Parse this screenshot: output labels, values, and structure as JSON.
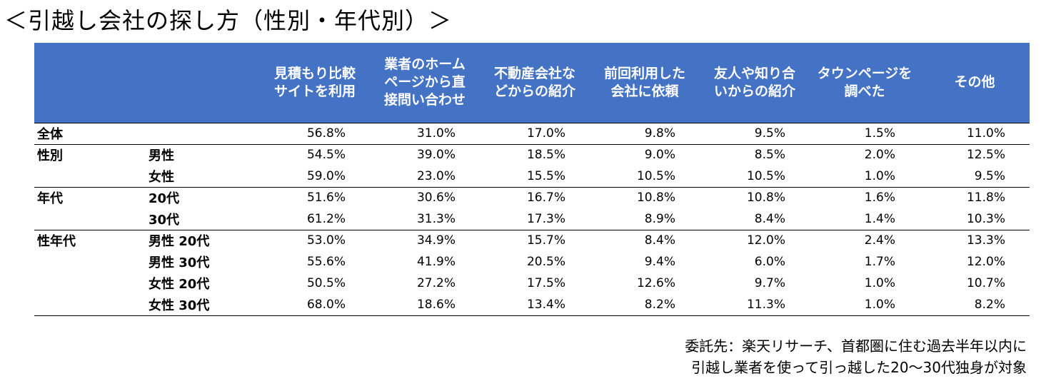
{
  "title": "＜引越し会社の探し方（性別・年代別）＞",
  "chart_data": {
    "type": "table",
    "columns": [
      "見積もり比較\nサイトを利用",
      "業者のホーム\nページから直\n接問い合わせ",
      "不動産会社な\nどからの紹介",
      "前回利用した\n会社に依頼",
      "友人や知り合\nいからの紹介",
      "タウンページを\n調べた",
      "その他"
    ],
    "rows": [
      {
        "group": "全体",
        "sub": "",
        "values": [
          "56.8%",
          "31.0%",
          "17.0%",
          "9.8%",
          "9.5%",
          "1.5%",
          "11.0%"
        ]
      },
      {
        "group": "性別",
        "sub": "男性",
        "values": [
          "54.5%",
          "39.0%",
          "18.5%",
          "9.0%",
          "8.5%",
          "2.0%",
          "12.5%"
        ]
      },
      {
        "group": "",
        "sub": "女性",
        "values": [
          "59.0%",
          "23.0%",
          "15.5%",
          "10.5%",
          "10.5%",
          "1.0%",
          "9.5%"
        ]
      },
      {
        "group": "年代",
        "sub": "20代",
        "values": [
          "51.6%",
          "30.6%",
          "16.7%",
          "10.8%",
          "10.8%",
          "1.6%",
          "11.8%"
        ]
      },
      {
        "group": "",
        "sub": "30代",
        "values": [
          "61.2%",
          "31.3%",
          "17.3%",
          "8.9%",
          "8.4%",
          "1.4%",
          "10.3%"
        ]
      },
      {
        "group": "性年代",
        "sub": "男性 20代",
        "values": [
          "53.0%",
          "34.9%",
          "15.7%",
          "8.4%",
          "12.0%",
          "2.4%",
          "13.3%"
        ]
      },
      {
        "group": "",
        "sub": "男性 30代",
        "values": [
          "55.6%",
          "41.9%",
          "20.5%",
          "9.4%",
          "6.0%",
          "1.7%",
          "12.0%"
        ]
      },
      {
        "group": "",
        "sub": "女性 20代",
        "values": [
          "50.5%",
          "27.2%",
          "17.5%",
          "12.6%",
          "9.7%",
          "1.0%",
          "10.7%"
        ]
      },
      {
        "group": "",
        "sub": "女性 30代",
        "values": [
          "68.0%",
          "18.6%",
          "13.4%",
          "8.2%",
          "11.3%",
          "1.0%",
          "8.2%"
        ]
      }
    ]
  },
  "footnote": "委託先：楽天リサーチ、首都圏に住む過去半年以内に\n引越し業者を使って引っ越した20〜30代独身が対象",
  "colors": {
    "header_bg": "#4472c4",
    "header_text": "#ffffff",
    "rule": "#000000"
  }
}
